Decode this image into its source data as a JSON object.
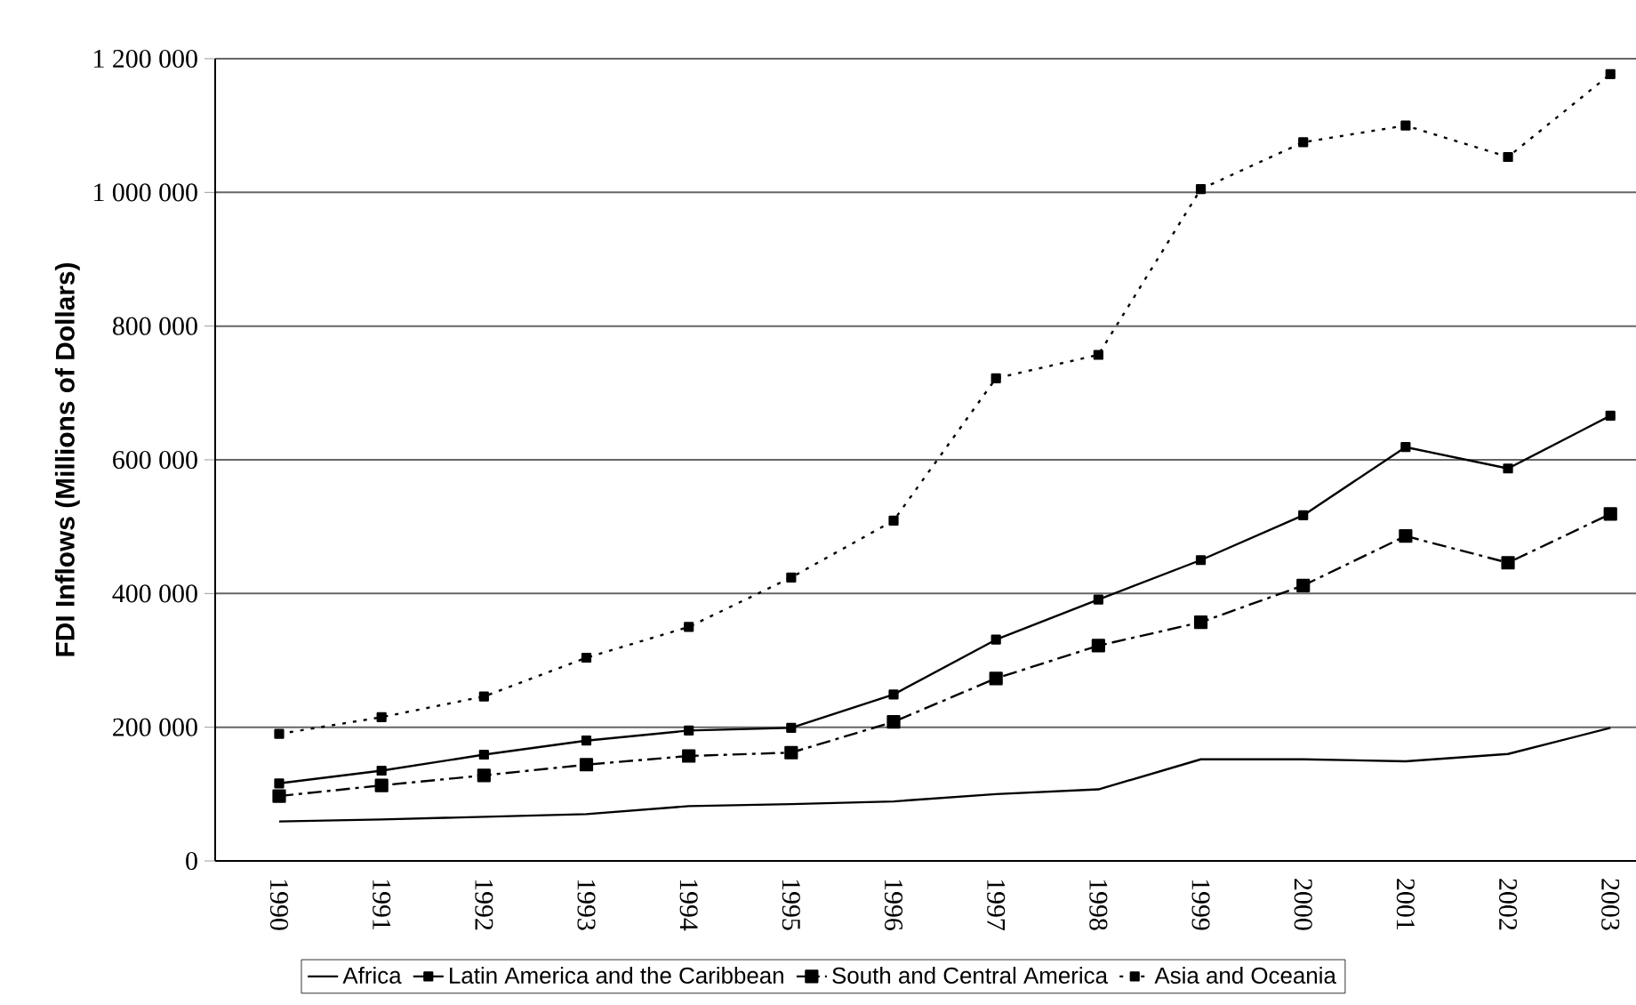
{
  "chart_data": {
    "type": "line",
    "ylabel": "FDI Inflows (Millions of Dollars)",
    "categories": [
      "1990",
      "1991",
      "1992",
      "1993",
      "1994",
      "1995",
      "1996",
      "1997",
      "1998",
      "1999",
      "2000",
      "2001",
      "2002",
      "2003"
    ],
    "ylim": [
      0,
      1200000
    ],
    "yticks": [
      {
        "value": 0,
        "label": "0"
      },
      {
        "value": 200000,
        "label": "200 000"
      },
      {
        "value": 400000,
        "label": "400 000"
      },
      {
        "value": 600000,
        "label": "600 000"
      },
      {
        "value": 800000,
        "label": "800 000"
      },
      {
        "value": 1000000,
        "label": "1 000 000"
      },
      {
        "value": 1200000,
        "label": "1 200 000"
      }
    ],
    "grid": "y",
    "legend": "bottom",
    "series": [
      {
        "name": "Africa",
        "color": "#000000",
        "marker": "none",
        "line_style": "solid",
        "values": [
          59000,
          62000,
          66000,
          70000,
          82000,
          85000,
          89000,
          100000,
          107000,
          152000,
          152000,
          149000,
          160000,
          199000
        ]
      },
      {
        "name": "Latin America and the Caribbean",
        "color": "#000000",
        "marker": "square",
        "line_style": "solid",
        "values": [
          116000,
          135000,
          159000,
          180000,
          195000,
          199000,
          249000,
          331000,
          391000,
          450000,
          517000,
          619000,
          587000,
          666000
        ]
      },
      {
        "name": "South and Central America",
        "color": "#000000",
        "marker": "square",
        "line_style": "dashed",
        "values": [
          97000,
          113000,
          128000,
          144000,
          157000,
          162000,
          208000,
          273000,
          322000,
          357000,
          412000,
          486000,
          446000,
          519000
        ]
      },
      {
        "name": "Asia and Oceania",
        "color": "#000000",
        "marker": "square",
        "line_style": "dotted",
        "values": [
          190000,
          215000,
          246000,
          304000,
          350000,
          424000,
          509000,
          722000,
          757000,
          1005000,
          1075000,
          1100000,
          1053000,
          1177000
        ]
      }
    ]
  }
}
